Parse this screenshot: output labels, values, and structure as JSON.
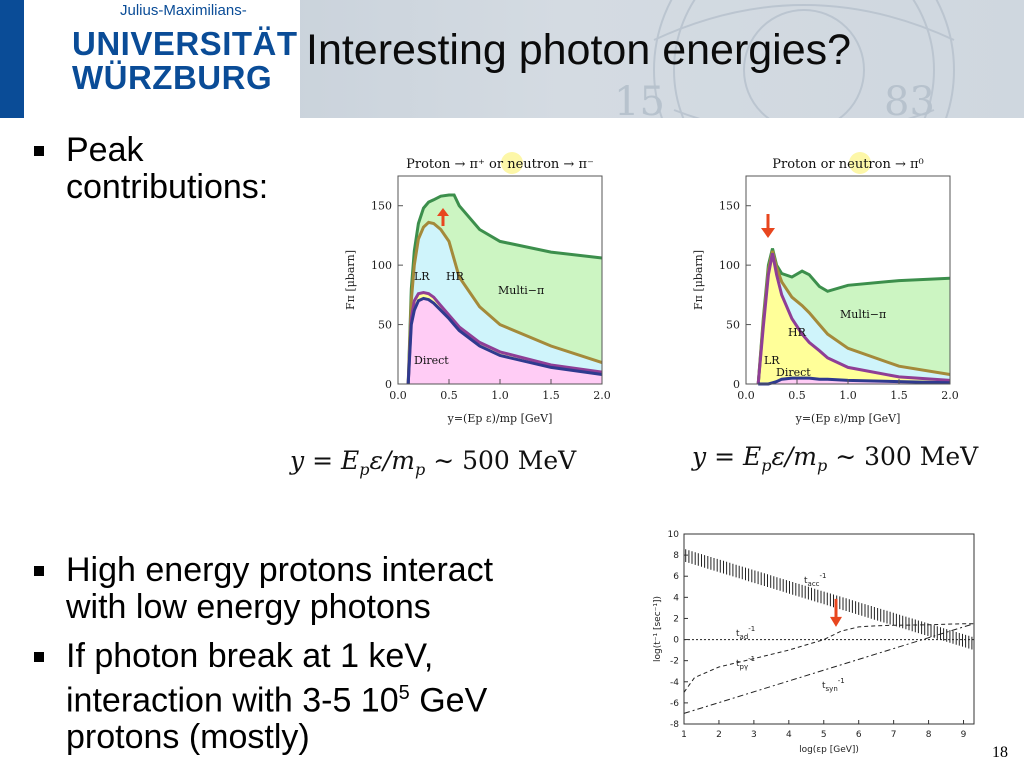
{
  "header": {
    "university_line1": "Julius-Maximilians-",
    "university_line2": "UNIVERSITÄT",
    "university_line3": "WÜRZBURG",
    "title": "Interesting photon energies?"
  },
  "bullets": {
    "peak": "Peak contributions:",
    "peak_line1": "Peak",
    "peak_line2": "contributions:",
    "high_line1": "High energy protons interact",
    "high_line2": "with low energy photons",
    "break_line1": "If photon break at 1 keV,",
    "break_line2a": "interaction with 3-5 10",
    "break_sup": "5",
    "break_line2b": " GeV",
    "break_line3": "protons (mostly)"
  },
  "formulas": {
    "left": {
      "prefix": "y = E",
      "sub": "p",
      "mid": "ε/m",
      "sub2": "p",
      "tilde": " ∼ ",
      "value": "500 MeV"
    },
    "right": {
      "prefix": "y = E",
      "sub": "p",
      "mid": "ε/m",
      "sub2": "p",
      "tilde": " ∼ ",
      "value": "300 MeV"
    }
  },
  "page_number": "18",
  "colors": {
    "brand_blue": "#0a4c97",
    "green_fill": "#ccf5c2",
    "cyan_fill": "#cff4fb",
    "yellow_fill": "#ffff99",
    "pink_fill": "#ffccf5",
    "green_line": "#3c8f4c",
    "olive_line": "#a48a3a",
    "purple_line": "#8f3e96",
    "blue_line": "#2f3a8f",
    "arrow_red": "#e8461e"
  },
  "chart_data": [
    {
      "type": "area",
      "title": "Proton → π⁺ or neutron → π⁻",
      "xlabel": "y=(Ep ε)/mp [GeV]",
      "ylabel": "Fπ [μbarn]",
      "xlim": [
        0.0,
        2.0
      ],
      "ylim": [
        0,
        175
      ],
      "x_ticks": [
        "0.0",
        "0.5",
        "1.0",
        "1.5",
        "2.0"
      ],
      "y_ticks": [
        "0",
        "50",
        "100",
        "150"
      ],
      "region_labels": [
        "LR",
        "HR",
        "Multi−π",
        "Direct"
      ],
      "arrow": "up",
      "series": [
        {
          "name": "Multi−π",
          "x": [
            0.1,
            0.13,
            0.16,
            0.2,
            0.25,
            0.3,
            0.35,
            0.42,
            0.5,
            0.55,
            0.6,
            0.8,
            1.0,
            1.5,
            2.0
          ],
          "values": [
            0,
            80,
            112,
            135,
            148,
            153,
            155,
            158,
            159,
            159,
            150,
            130,
            120,
            111,
            106
          ]
        },
        {
          "name": "HR",
          "x": [
            0.1,
            0.13,
            0.16,
            0.2,
            0.25,
            0.3,
            0.35,
            0.42,
            0.5,
            0.55,
            0.6,
            0.8,
            1.0,
            1.5,
            2.0
          ],
          "values": [
            0,
            70,
            100,
            122,
            132,
            136,
            135,
            130,
            120,
            105,
            90,
            65,
            50,
            32,
            18
          ]
        },
        {
          "name": "LR",
          "x": [
            0.1,
            0.13,
            0.16,
            0.2,
            0.25,
            0.3,
            0.35,
            0.42,
            0.5,
            0.55,
            0.6,
            0.8,
            1.0,
            1.5,
            2.0
          ],
          "values": [
            0,
            55,
            70,
            76,
            77,
            76,
            73,
            66,
            58,
            53,
            48,
            35,
            27,
            16,
            10
          ]
        },
        {
          "name": "Direct",
          "x": [
            0.1,
            0.13,
            0.16,
            0.2,
            0.25,
            0.3,
            0.35,
            0.42,
            0.5,
            0.55,
            0.6,
            0.8,
            1.0,
            1.5,
            2.0
          ],
          "values": [
            0,
            50,
            62,
            70,
            72,
            71,
            68,
            62,
            55,
            50,
            45,
            32,
            24,
            14,
            8
          ]
        }
      ]
    },
    {
      "type": "area",
      "title": "Proton or neutron → π⁰",
      "xlabel": "y=(Ep ε)/mp [GeV]",
      "ylabel": "Fπ [μbarn]",
      "xlim": [
        0.0,
        2.0
      ],
      "ylim": [
        0,
        175
      ],
      "x_ticks": [
        "0.0",
        "0.5",
        "1.0",
        "1.5",
        "2.0"
      ],
      "y_ticks": [
        "0",
        "50",
        "100",
        "150"
      ],
      "region_labels": [
        "Multi−π",
        "HR",
        "LR",
        "Direct"
      ],
      "arrow": "down",
      "series": [
        {
          "name": "Multi−π",
          "x": [
            0.12,
            0.17,
            0.22,
            0.26,
            0.3,
            0.35,
            0.45,
            0.55,
            0.62,
            0.72,
            0.8,
            1.0,
            1.5,
            2.0
          ],
          "values": [
            0,
            55,
            100,
            114,
            100,
            93,
            90,
            95,
            92,
            82,
            78,
            83,
            87,
            89
          ]
        },
        {
          "name": "HR",
          "x": [
            0.12,
            0.17,
            0.22,
            0.26,
            0.3,
            0.35,
            0.45,
            0.55,
            0.62,
            0.72,
            0.8,
            1.0,
            1.5,
            2.0
          ],
          "values": [
            0,
            52,
            96,
            112,
            98,
            86,
            73,
            66,
            60,
            50,
            42,
            30,
            15,
            8
          ]
        },
        {
          "name": "LR",
          "x": [
            0.12,
            0.17,
            0.22,
            0.26,
            0.3,
            0.35,
            0.45,
            0.55,
            0.62,
            0.72,
            0.8,
            1.0,
            1.5,
            2.0
          ],
          "values": [
            0,
            48,
            92,
            110,
            92,
            75,
            55,
            42,
            35,
            28,
            22,
            14,
            6,
            3
          ]
        },
        {
          "name": "Direct",
          "x": [
            0.12,
            0.17,
            0.22,
            0.26,
            0.3,
            0.35,
            0.45,
            0.55,
            0.62,
            0.72,
            0.8,
            1.0,
            1.5,
            2.0
          ],
          "values": [
            0,
            0,
            0,
            1,
            2,
            4,
            5,
            5,
            5,
            4,
            4,
            3,
            2,
            1
          ]
        }
      ]
    },
    {
      "type": "line",
      "title": "",
      "xlabel": "log(εp [GeV])",
      "ylabel": "log(t⁻¹ [sec⁻¹])",
      "xlim": [
        1,
        9.3
      ],
      "ylim": [
        -8,
        10
      ],
      "x_ticks": [
        "1",
        "2",
        "3",
        "4",
        "5",
        "6",
        "7",
        "8",
        "9"
      ],
      "y_ticks": [
        "-8",
        "-6",
        "-4",
        "-2",
        "0",
        "2",
        "4",
        "6",
        "8",
        "10"
      ],
      "series": [
        {
          "name": "tacc⁻¹",
          "x": [
            1,
            9.3
          ],
          "values": [
            8,
            -0.4
          ]
        },
        {
          "name": "tad⁻¹",
          "x": [
            1,
            1.3,
            2,
            3,
            4,
            5,
            5.5,
            6,
            6.5,
            7,
            8,
            9,
            9.3
          ],
          "values": [
            -5,
            -3.6,
            -2.6,
            -1.8,
            -1.0,
            0.0,
            0.8,
            1.2,
            1.3,
            1.35,
            1.4,
            1.5,
            1.5
          ]
        },
        {
          "name": "tpγ⁻¹",
          "x": [
            1,
            4,
            5.8,
            9.3
          ],
          "values": [
            0,
            0,
            0,
            0
          ]
        },
        {
          "name": "tsyn⁻¹",
          "x": [
            1,
            9.3
          ],
          "values": [
            -7,
            1.5
          ]
        }
      ]
    }
  ]
}
